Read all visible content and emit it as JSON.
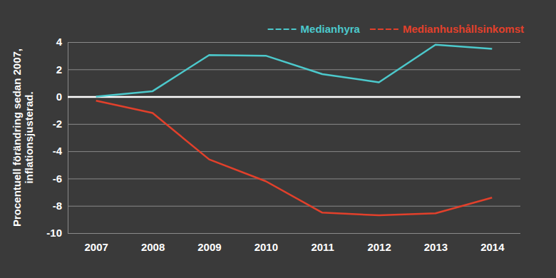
{
  "chart_data": {
    "type": "line",
    "y_label": [
      "Procentuell förändring sedan 2007,",
      "inflationsjusterad."
    ],
    "categories": [
      "2007",
      "2008",
      "2009",
      "2010",
      "2011",
      "2012",
      "2013",
      "2014"
    ],
    "series": [
      {
        "name": "Medianhyra",
        "color": "#4cc9cc",
        "values": [
          0,
          0.4,
          3.05,
          3.0,
          1.65,
          1.05,
          3.8,
          3.5
        ]
      },
      {
        "name": "Medianhushållsinkomst",
        "color": "#e2402b",
        "values": [
          -0.3,
          -1.2,
          -4.6,
          -6.2,
          -8.5,
          -8.7,
          -8.55,
          -7.4
        ]
      }
    ],
    "ylim": [
      -10,
      4
    ],
    "yticks": [
      -10,
      -8,
      -6,
      -4,
      -2,
      0,
      2,
      4
    ],
    "grid": true,
    "legend": "top-right"
  }
}
